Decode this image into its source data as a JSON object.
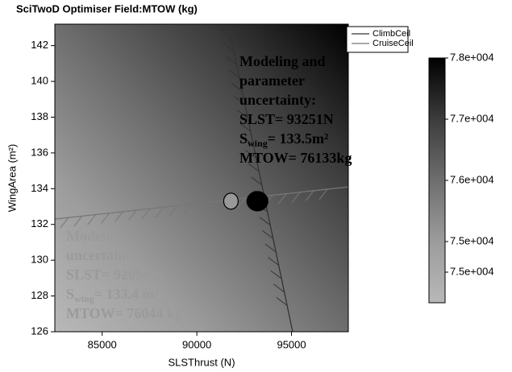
{
  "chart_data": {
    "type": "field",
    "title": "SciTwoD Optimiser Field:MTOW (kg)",
    "x_label": "SLSThrust (N)",
    "y_label": "WingArea (m²)",
    "xlim": [
      82500,
      98000
    ],
    "ylim": [
      126,
      143.2
    ],
    "xticks": [
      85000,
      90000,
      95000
    ],
    "yticks": [
      126,
      128,
      130,
      132,
      134,
      136,
      138,
      140,
      142
    ],
    "colormap": [
      "#b8b8b8",
      "#9c9c9c",
      "#6e6e6e",
      "#3c3c3c",
      "#000000"
    ],
    "series": [
      {
        "name": "ClimbCeil",
        "color": "#333333",
        "x": [
          91650,
          95060
        ],
        "values": [
          143.2,
          126
        ]
      },
      {
        "name": "CruiseCeil",
        "color": "#777777",
        "x": [
          82500,
          98000
        ],
        "values": [
          132.3,
          134.1
        ]
      }
    ],
    "points": [
      {
        "x": 91800,
        "y": 133.3,
        "color": "#999999"
      },
      {
        "x": 93200,
        "y": 133.3,
        "color": "#000000"
      }
    ],
    "colorbar": {
      "clim": [
        74000,
        78000
      ],
      "ticks": [
        {
          "value": 78000,
          "label": "7.8e+004"
        },
        {
          "value": 77000,
          "label": "7.7e+004"
        },
        {
          "value": 76000,
          "label": "7.6e+004"
        },
        {
          "value": 75000,
          "label": "7.5e+004"
        },
        {
          "value": 74500,
          "label": "7.5e+004"
        }
      ]
    },
    "annotations": [
      {
        "color": "#000000",
        "lines": [
          "Modeling and",
          "parameter",
          "uncertainty:",
          "SLST= 93251N"
        ],
        "wing": {
          "main": "S",
          "sub": "wing",
          "rest": "= 133.5m²"
        },
        "last": "MTOW= 76133kg"
      },
      {
        "color": "#9a9a9a",
        "lines": [
          "Modeling",
          "uncertainty:",
          "SLST= 92094 N"
        ],
        "wing": {
          "main": "S",
          "sub": "wing",
          "rest": "= 133.4 m²"
        },
        "last": "MTOW= 76044 kg"
      }
    ]
  }
}
